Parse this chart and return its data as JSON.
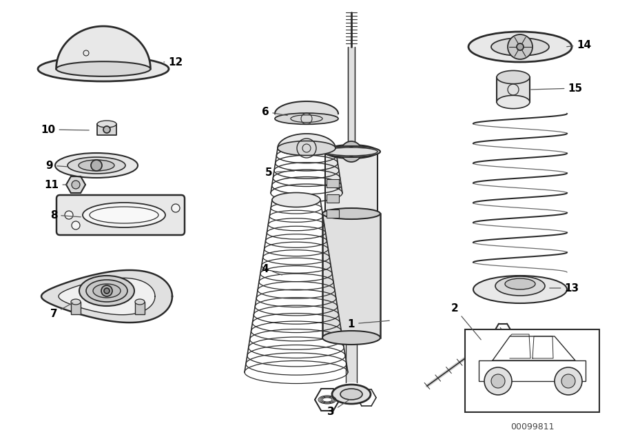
{
  "bg_color": "#ffffff",
  "line_color": "#2a2a2a",
  "label_color": "#000000",
  "fig_width": 9.0,
  "fig_height": 6.37,
  "dpi": 100,
  "part_code": "00099811"
}
